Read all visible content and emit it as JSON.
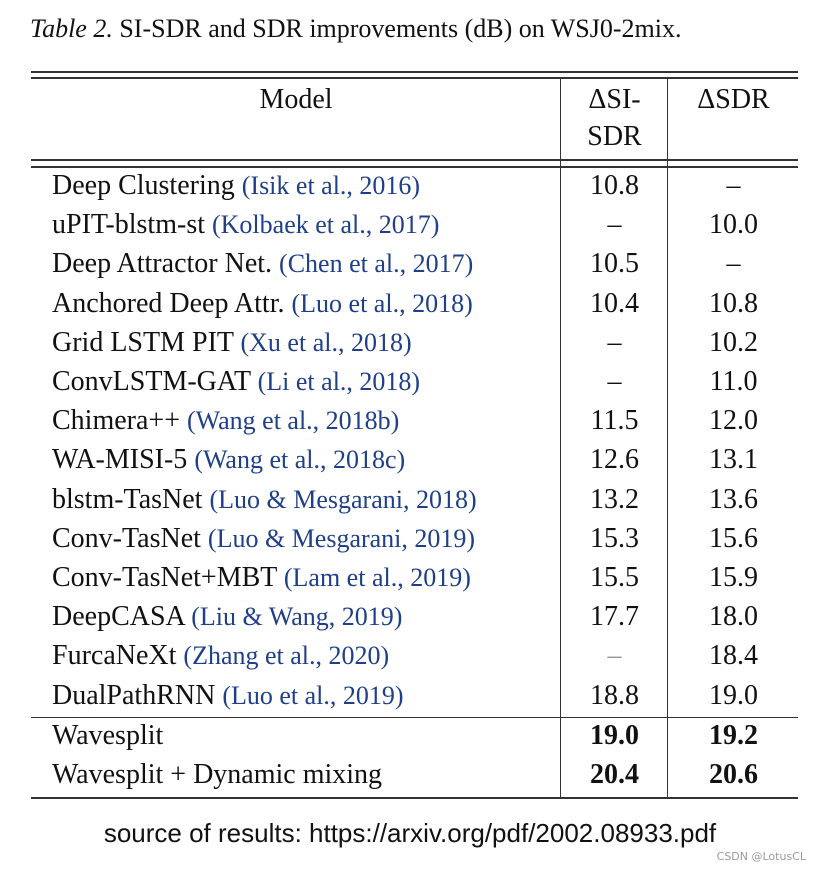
{
  "caption": {
    "label": "Table 2.",
    "text": " SI-SDR and SDR improvements (dB) on WSJ0-2mix."
  },
  "header": {
    "model": "Model",
    "si_sdr_line1": "ΔSI-",
    "si_sdr_line2": "SDR",
    "sdr": "ΔSDR"
  },
  "rows": [
    {
      "model": "Deep Clustering",
      "cite": "(Isik et al., 2016)",
      "si_sdr": "10.8",
      "sdr": "–"
    },
    {
      "model": "uPIT-blstm-st",
      "cite": "(Kolbaek et al., 2017)",
      "si_sdr": "–",
      "sdr": "10.0"
    },
    {
      "model": "Deep Attractor Net.",
      "cite": "(Chen et al., 2017)",
      "si_sdr": "10.5",
      "sdr": "–"
    },
    {
      "model": "Anchored Deep Attr.",
      "cite": "(Luo et al., 2018)",
      "si_sdr": "10.4",
      "sdr": "10.8"
    },
    {
      "model": "Grid LSTM PIT",
      "cite": "(Xu et al., 2018)",
      "si_sdr": "–",
      "sdr": "10.2"
    },
    {
      "model": "ConvLSTM-GAT",
      "cite": "(Li et al., 2018)",
      "si_sdr": "–",
      "sdr": "11.0"
    },
    {
      "model": "Chimera++",
      "cite": "(Wang et al., 2018b)",
      "si_sdr": "11.5",
      "sdr": "12.0"
    },
    {
      "model": "WA-MISI-5",
      "cite": "(Wang et al., 2018c)",
      "si_sdr": "12.6",
      "sdr": "13.1"
    },
    {
      "model": "blstm-TasNet",
      "cite": "(Luo & Mesgarani, 2018)",
      "si_sdr": "13.2",
      "sdr": "13.6"
    },
    {
      "model": "Conv-TasNet",
      "cite": "(Luo & Mesgarani, 2019)",
      "si_sdr": "15.3",
      "sdr": "15.6"
    },
    {
      "model": "Conv-TasNet+MBT",
      "cite": "(Lam et al., 2019)",
      "si_sdr": "15.5",
      "sdr": "15.9"
    },
    {
      "model": "DeepCASA",
      "cite": "(Liu & Wang, 2019)",
      "si_sdr": "17.7",
      "sdr": "18.0"
    },
    {
      "model": "FurcaNeXt",
      "cite": "(Zhang et al., 2020)",
      "si_sdr": "–",
      "sdr": "18.4"
    },
    {
      "model": "DualPathRNN",
      "cite": "(Luo et al., 2019)",
      "si_sdr": "18.8",
      "sdr": "19.0"
    }
  ],
  "bold_rows": [
    {
      "model": "Wavesplit",
      "si_sdr": "19.0",
      "sdr": "19.2"
    },
    {
      "model": "Wavesplit + Dynamic mixing",
      "si_sdr": "20.4",
      "sdr": "20.6"
    }
  ],
  "source": "source of results: https://arxiv.org/pdf/2002.08933.pdf",
  "watermark": "CSDN @LotusCL",
  "colors": {
    "citation": "#1f3f8a",
    "rule": "#333333"
  }
}
